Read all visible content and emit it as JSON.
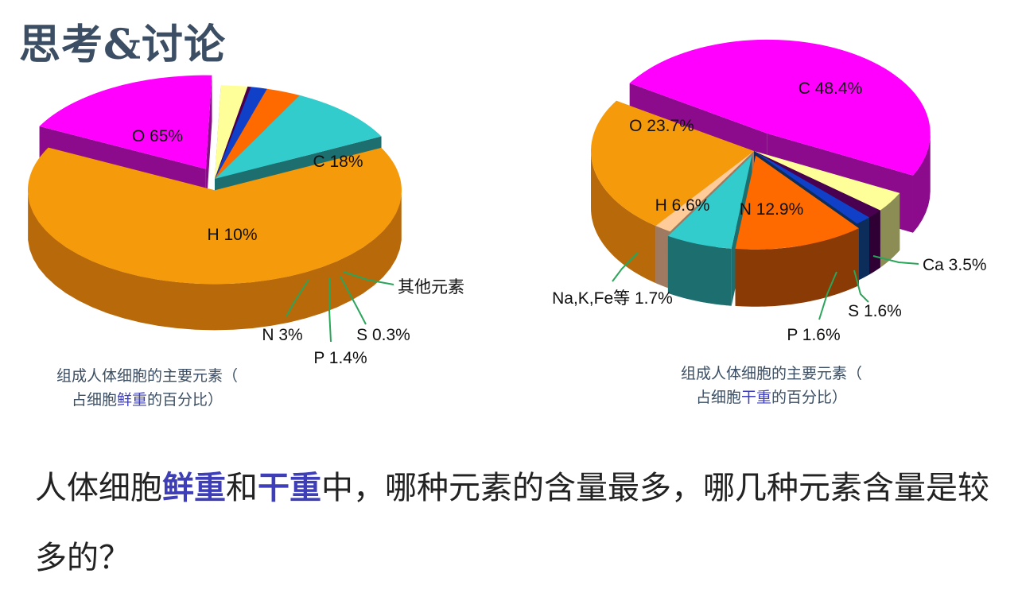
{
  "page": {
    "title": "思考&讨论",
    "question": {
      "p1": "人体细胞",
      "h1": "鲜重",
      "p2": "和",
      "h2": "干重",
      "p3": "中，哪种元素的含量最多，哪几种元素含量是较多的？"
    }
  },
  "chart_data": [
    {
      "type": "pie",
      "caption": {
        "line1": "组成人体细胞的主要元素（",
        "line2_a": "占细胞",
        "line2_hl": "鲜重",
        "line2_b": "的百分比）"
      },
      "slices": [
        {
          "name": "O",
          "value": 65,
          "label": "O 65%",
          "color": "#f59a0b",
          "side": "#b8690a",
          "exploded": true
        },
        {
          "name": "C",
          "value": 18,
          "label": "C 18%",
          "color": "#ff00ff",
          "side": "#8c0a8c",
          "exploded": true
        },
        {
          "name": "其他元素",
          "value": 2.3,
          "label": "其他元素",
          "color": "#ffff99",
          "side": "#8c8c55"
        },
        {
          "name": "S",
          "value": 0.3,
          "label": "S 0.3%",
          "color": "#4a0050",
          "side": "#2e0034"
        },
        {
          "name": "P",
          "value": 1.4,
          "label": "P 1.4%",
          "color": "#1140c8",
          "side": "#0c2d5a"
        },
        {
          "name": "N",
          "value": 3,
          "label": "N 3%",
          "color": "#ff6a00",
          "side": "#8a3a05"
        },
        {
          "name": "H",
          "value": 10,
          "label": "H 10%",
          "color": "#33cccc",
          "side": "#1d6e6e"
        }
      ]
    },
    {
      "type": "pie",
      "caption": {
        "line1": "组成人体细胞的主要元素（",
        "line2_a": "占细胞",
        "line2_hl": "干重",
        "line2_b": "的百分比）"
      },
      "slices": [
        {
          "name": "C",
          "value": 48.4,
          "label": "C 48.4%",
          "color": "#ff00ff",
          "side": "#8c0a8c",
          "exploded": true
        },
        {
          "name": "Ca",
          "value": 3.5,
          "label": "Ca 3.5%",
          "color": "#ffff99",
          "side": "#8c8c55"
        },
        {
          "name": "S",
          "value": 1.6,
          "label": "S 1.6%",
          "color": "#4a0050",
          "side": "#2e0034"
        },
        {
          "name": "P",
          "value": 1.6,
          "label": "P 1.6%",
          "color": "#1140c8",
          "side": "#0c2d5a"
        },
        {
          "name": "N",
          "value": 12.9,
          "label": "N 12.9%",
          "color": "#ff6a00",
          "side": "#8a3a05",
          "exploded": true
        },
        {
          "name": "H",
          "value": 6.6,
          "label": "H 6.6%",
          "color": "#33cccc",
          "side": "#1d6e6e",
          "exploded": true
        },
        {
          "name": "Na,K,Fe等",
          "value": 1.7,
          "label": "Na,K,Fe等  1.7%",
          "color": "#ffcc99",
          "side": "#a07a60"
        },
        {
          "name": "O",
          "value": 23.7,
          "label": "O 23.7%",
          "color": "#f59a0b",
          "side": "#b8690a"
        }
      ]
    }
  ]
}
